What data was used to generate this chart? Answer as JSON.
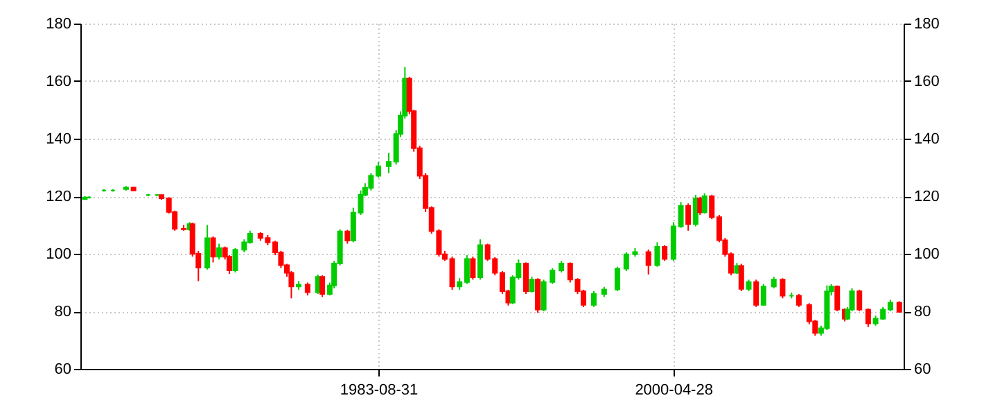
{
  "chart_data": {
    "type": "candlestick",
    "x": [
      "1967-02",
      "1967-05",
      "1968-03",
      "1968-09",
      "1969-06",
      "1969-11",
      "1970-09",
      "1971-03",
      "1971-06",
      "1971-11",
      "1972-03",
      "1972-09",
      "1973-01",
      "1973-03",
      "1973-07",
      "1974-01",
      "1974-05",
      "1974-09",
      "1975-01",
      "1975-04",
      "1975-08",
      "1976-02",
      "1976-06",
      "1977-01",
      "1977-06",
      "1977-11",
      "1978-03",
      "1978-07",
      "1978-10",
      "1979-03",
      "1979-09",
      "1980-04",
      "1980-07",
      "1980-12",
      "1981-03",
      "1981-07",
      "1981-12",
      "1982-04",
      "1982-09",
      "1982-12",
      "1983-04",
      "1983-09",
      "1984-04",
      "1984-09",
      "1984-12",
      "1985-03",
      "1985-06",
      "1985-09",
      "1986-01",
      "1986-05",
      "1986-09",
      "1987-02",
      "1987-06",
      "1987-11",
      "1988-04",
      "1988-09",
      "1989-01",
      "1989-06",
      "1989-11",
      "1990-04",
      "1990-09",
      "1991-01",
      "1991-04",
      "1991-08",
      "1992-01",
      "1992-05",
      "1992-09",
      "1993-01",
      "1993-07",
      "1994-01",
      "1994-07",
      "1994-12",
      "1995-04",
      "1995-11",
      "1996-06",
      "1997-03",
      "1997-09",
      "1998-03",
      "1998-12",
      "1999-06",
      "1999-11",
      "2000-05",
      "2000-10",
      "2001-03",
      "2001-08",
      "2001-11",
      "2002-02",
      "2002-07",
      "2002-12",
      "2003-04",
      "2003-08",
      "2003-12",
      "2004-03",
      "2004-08",
      "2005-01",
      "2005-06",
      "2006-01",
      "2006-07",
      "2007-01",
      "2007-06",
      "2008-01",
      "2008-05",
      "2008-09",
      "2009-01",
      "2009-04",
      "2009-08",
      "2010-01",
      "2010-03",
      "2010-06",
      "2010-11",
      "2011-05",
      "2011-10",
      "2012-03",
      "2012-08",
      "2013-02"
    ],
    "ohlc": [
      [
        119,
        120,
        118.8,
        119.6
      ],
      [
        119.6,
        120,
        119.2,
        119.6
      ],
      [
        122,
        122.4,
        121.6,
        122
      ],
      [
        122,
        122.4,
        121.6,
        122
      ],
      [
        122.5,
        123.5,
        122,
        123
      ],
      [
        123,
        123.2,
        121.8,
        122
      ],
      [
        120.4,
        120.8,
        120,
        120.4
      ],
      [
        120.4,
        120.8,
        120,
        120.4
      ],
      [
        120.4,
        120.6,
        118.8,
        119.3
      ],
      [
        119.3,
        119.6,
        114,
        114.5
      ],
      [
        114.5,
        115,
        108,
        108.7
      ],
      [
        108.7,
        110,
        108,
        108.5
      ],
      [
        108.5,
        111,
        108,
        110.3
      ],
      [
        110.3,
        110.8,
        99,
        100
      ],
      [
        100,
        101,
        90.5,
        95.2
      ],
      [
        95.2,
        110,
        94.5,
        105.4
      ],
      [
        105.4,
        106,
        97,
        99
      ],
      [
        99,
        103.5,
        98,
        102
      ],
      [
        102,
        102.5,
        98,
        99
      ],
      [
        99,
        99.5,
        93,
        94.2
      ],
      [
        94.2,
        102,
        93.5,
        101.4
      ],
      [
        101.4,
        105,
        100.5,
        104
      ],
      [
        104,
        108,
        103.5,
        107
      ],
      [
        107,
        107.5,
        104.5,
        105.5
      ],
      [
        105.5,
        106.5,
        103,
        104
      ],
      [
        104,
        104.5,
        99.5,
        100.5
      ],
      [
        100.5,
        101,
        95,
        96
      ],
      [
        96,
        96.5,
        92,
        93.4
      ],
      [
        93.4,
        94,
        84.5,
        88.6
      ],
      [
        88.6,
        90.5,
        87.5,
        89.3
      ],
      [
        89.3,
        90,
        85.5,
        86.6
      ],
      [
        86.6,
        92.8,
        86,
        92
      ],
      [
        92,
        92.5,
        85,
        86
      ],
      [
        86,
        90,
        85.5,
        89
      ],
      [
        89,
        97.5,
        88,
        96.6
      ],
      [
        96.6,
        108.5,
        96,
        107.8
      ],
      [
        107.8,
        108.3,
        103.5,
        104.6
      ],
      [
        104.6,
        116,
        104,
        114.3
      ],
      [
        114.3,
        122,
        113.5,
        120.5
      ],
      [
        120.5,
        124.5,
        120,
        122.9
      ],
      [
        122.9,
        128,
        122,
        127.1
      ],
      [
        127.1,
        132,
        126.5,
        130.4
      ],
      [
        130.4,
        135,
        128,
        132
      ],
      [
        132,
        143,
        131,
        141.6
      ],
      [
        141.6,
        149.5,
        140.5,
        148
      ],
      [
        148,
        164.9,
        147,
        160.9
      ],
      [
        160.9,
        161.5,
        148.5,
        149.6
      ],
      [
        149.6,
        150,
        135.5,
        136.7
      ],
      [
        136.7,
        137.5,
        126,
        127.1
      ],
      [
        127.1,
        128,
        114.5,
        115.9
      ],
      [
        115.9,
        116.5,
        107,
        107.9
      ],
      [
        107.9,
        108.5,
        99,
        99.8
      ],
      [
        99.8,
        101,
        97.5,
        98.2
      ],
      [
        98.2,
        99,
        87.5,
        88.6
      ],
      [
        88.6,
        91.5,
        87.5,
        90.2
      ],
      [
        90.2,
        99.5,
        89.5,
        98.2
      ],
      [
        98.2,
        99,
        91,
        91.8
      ],
      [
        91.8,
        105,
        91,
        103
      ],
      [
        103,
        103.5,
        97.5,
        98.2
      ],
      [
        98.2,
        98.8,
        92.5,
        93.4
      ],
      [
        93.4,
        94,
        86,
        87
      ],
      [
        87,
        87.5,
        82,
        83
      ],
      [
        83,
        92.5,
        82.5,
        91.8
      ],
      [
        91.8,
        98,
        91,
        96.6
      ],
      [
        96.6,
        97,
        86,
        87
      ],
      [
        87,
        92,
        86.5,
        91
      ],
      [
        91,
        91.5,
        79.5,
        80.6
      ],
      [
        80.6,
        91,
        80,
        90.2
      ],
      [
        90.2,
        95,
        89.5,
        94.2
      ],
      [
        94.2,
        97.5,
        93.5,
        96.6
      ],
      [
        96.6,
        97,
        90,
        91
      ],
      [
        91,
        91.5,
        86,
        87
      ],
      [
        87,
        87.5,
        81.5,
        82.2
      ],
      [
        82.2,
        87,
        81.5,
        86
      ],
      [
        86,
        88.5,
        85,
        87.6
      ],
      [
        87.6,
        95.5,
        87,
        94.8
      ],
      [
        94.8,
        100.5,
        94,
        99.8
      ],
      [
        99.8,
        102,
        99,
        100.6
      ],
      [
        100.6,
        101.5,
        92.8,
        96
      ],
      [
        96,
        104,
        95.5,
        102.4
      ],
      [
        102.4,
        103,
        97.5,
        98.2
      ],
      [
        98.2,
        111,
        97.5,
        109.5
      ],
      [
        109.5,
        118,
        109,
        116.6
      ],
      [
        116.6,
        117.5,
        108,
        110.3
      ],
      [
        110.3,
        120.5,
        109.5,
        119.2
      ],
      [
        119.2,
        119.8,
        113.5,
        114.4
      ],
      [
        114.4,
        121,
        114,
        120
      ],
      [
        120,
        120.5,
        112,
        112.7
      ],
      [
        112.7,
        113.5,
        104,
        104.7
      ],
      [
        104.7,
        105.5,
        99,
        99.9
      ],
      [
        99.9,
        100.5,
        92.5,
        93.4
      ],
      [
        93.4,
        96.8,
        93,
        95.8
      ],
      [
        95.8,
        96.5,
        87,
        87.8
      ],
      [
        87.8,
        91,
        87,
        90.2
      ],
      [
        90.2,
        91,
        81.5,
        82.2
      ],
      [
        82.2,
        89.5,
        82,
        88.6
      ],
      [
        88.6,
        92,
        88,
        91
      ],
      [
        91,
        91.5,
        84.5,
        85.4
      ],
      [
        85.4,
        86.5,
        84.5,
        85.4
      ],
      [
        85.4,
        86,
        81.5,
        82.2
      ],
      [
        82.2,
        82.8,
        75.5,
        76.5
      ],
      [
        76.5,
        77,
        71.5,
        72.5
      ],
      [
        72.5,
        75,
        71.5,
        74.1
      ],
      [
        74.1,
        89,
        73.5,
        86.9
      ],
      [
        86.9,
        89.4,
        85.5,
        88.6
      ],
      [
        88.6,
        89,
        80,
        80.6
      ],
      [
        80.6,
        81,
        76.5,
        77.4
      ],
      [
        77.4,
        81.5,
        77,
        80.6
      ],
      [
        80.6,
        88,
        80,
        87
      ],
      [
        87,
        87.5,
        80,
        80.6
      ],
      [
        80.6,
        81,
        74.5,
        75.8
      ],
      [
        75.8,
        78.5,
        75,
        77.4
      ],
      [
        77.4,
        81.5,
        77,
        80.6
      ],
      [
        80.6,
        84,
        80,
        83
      ],
      [
        83,
        83.5,
        79.5,
        79.8
      ]
    ],
    "colors": [
      "#00cc00",
      "#00cc00",
      "#00cc00",
      "#00cc00",
      "#00cc00",
      "#ff0000",
      "#00cc00",
      "#00cc00",
      "#ff0000",
      "#ff0000",
      "#ff0000",
      "#ff0000",
      "#00cc00",
      "#ff0000",
      "#ff0000",
      "#00cc00",
      "#ff0000",
      "#00cc00",
      "#ff0000",
      "#ff0000",
      "#00cc00",
      "#00cc00",
      "#00cc00",
      "#ff0000",
      "#ff0000",
      "#ff0000",
      "#ff0000",
      "#ff0000",
      "#ff0000",
      "#00cc00",
      "#ff0000",
      "#00cc00",
      "#ff0000",
      "#00cc00",
      "#00cc00",
      "#00cc00",
      "#ff0000",
      "#00cc00",
      "#00cc00",
      "#00cc00",
      "#00cc00",
      "#00cc00",
      "#00cc00",
      "#00cc00",
      "#00cc00",
      "#00cc00",
      "#ff0000",
      "#ff0000",
      "#ff0000",
      "#ff0000",
      "#ff0000",
      "#ff0000",
      "#ff0000",
      "#ff0000",
      "#00cc00",
      "#00cc00",
      "#ff0000",
      "#00cc00",
      "#ff0000",
      "#ff0000",
      "#ff0000",
      "#ff0000",
      "#00cc00",
      "#00cc00",
      "#ff0000",
      "#00cc00",
      "#ff0000",
      "#00cc00",
      "#00cc00",
      "#00cc00",
      "#ff0000",
      "#ff0000",
      "#ff0000",
      "#00cc00",
      "#00cc00",
      "#00cc00",
      "#00cc00",
      "#00cc00",
      "#ff0000",
      "#00cc00",
      "#ff0000",
      "#00cc00",
      "#00cc00",
      "#ff0000",
      "#00cc00",
      "#ff0000",
      "#00cc00",
      "#ff0000",
      "#ff0000",
      "#ff0000",
      "#ff0000",
      "#00cc00",
      "#ff0000",
      "#00cc00",
      "#ff0000",
      "#00cc00",
      "#00cc00",
      "#ff0000",
      "#00cc00",
      "#ff0000",
      "#ff0000",
      "#ff0000",
      "#00cc00",
      "#00cc00",
      "#00cc00",
      "#ff0000",
      "#ff0000",
      "#00cc00",
      "#00cc00",
      "#ff0000",
      "#ff0000",
      "#00cc00",
      "#00cc00",
      "#00cc00",
      "#ff0000"
    ],
    "xlim": [
      "1966-11-01",
      "2013-05-01"
    ],
    "xticks": [
      "1983-08-31",
      "2000-04-28"
    ],
    "ylim": [
      60,
      180
    ],
    "yticks": [
      60,
      80,
      100,
      120,
      140,
      160,
      180
    ],
    "y2lim": [
      60,
      180
    ],
    "y2ticks": [
      60,
      80,
      100,
      120,
      140,
      160,
      180
    ],
    "grid": true
  }
}
